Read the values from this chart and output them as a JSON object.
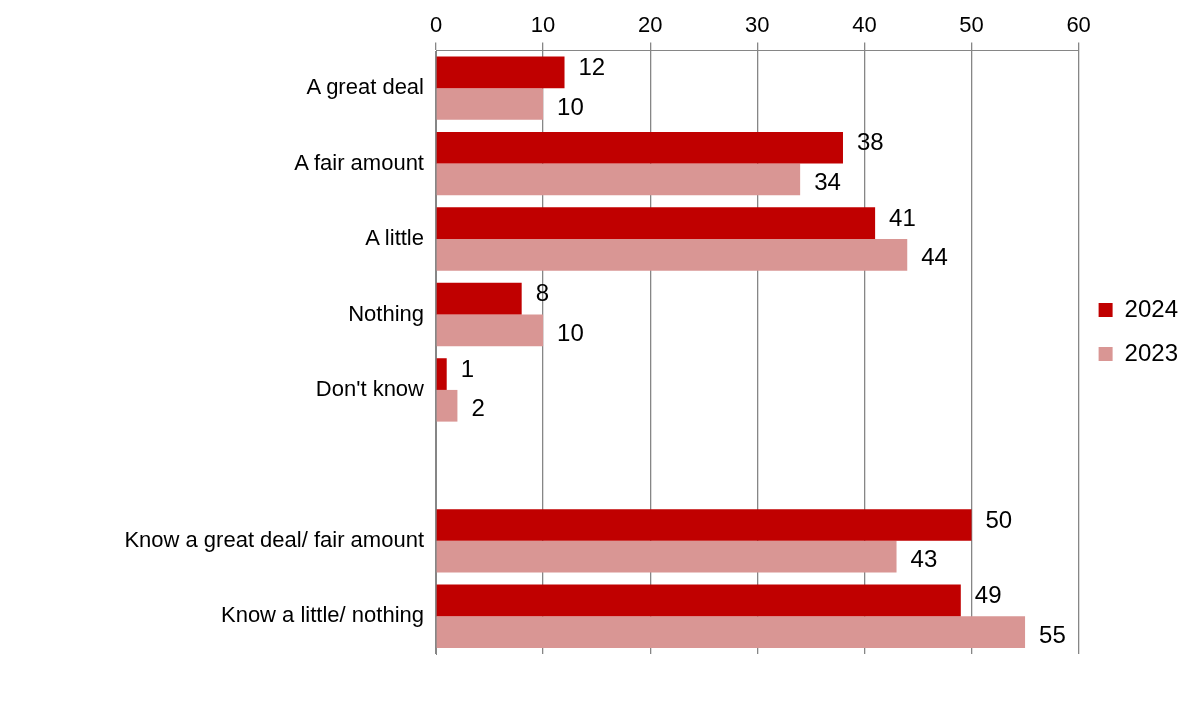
{
  "chart_data": {
    "type": "bar",
    "orientation": "horizontal",
    "categories": [
      "A great deal",
      "A fair amount",
      "A little",
      "Nothing",
      "Don't know",
      null,
      "Know a great deal/ fair amount",
      "Know a little/ nothing"
    ],
    "series": [
      {
        "name": "2024",
        "color": "#c00000",
        "values": [
          12,
          38,
          41,
          8,
          1,
          null,
          50,
          49
        ]
      },
      {
        "name": "2023",
        "color": "#d99694",
        "values": [
          10,
          34,
          44,
          10,
          2,
          null,
          43,
          55
        ]
      }
    ],
    "xlim": [
      0,
      60
    ],
    "xticks": [
      0,
      10,
      20,
      30,
      40,
      50,
      60
    ],
    "grid": "x",
    "legend": "right",
    "data_labels": true
  }
}
